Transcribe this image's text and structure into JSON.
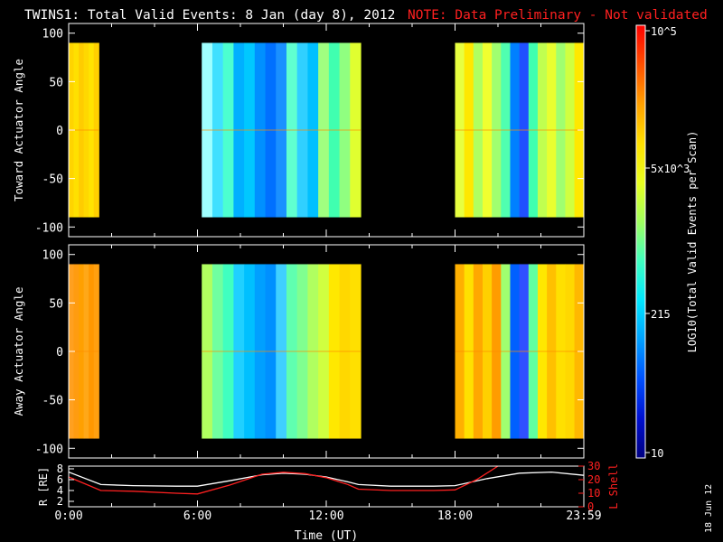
{
  "header": {
    "title": "TWINS1: Total Valid Events:  8 Jan (day   8), 2012",
    "note": "NOTE: Data Preliminary - Not validated"
  },
  "side_date": "18 Jun 12",
  "colorbar": {
    "label": "LOG10(Total Valid Events per Scan)",
    "ticks": [
      "10^5",
      "5x10^3",
      "215",
      "10"
    ],
    "colors": [
      "#ff0000",
      "#ff5000",
      "#ffa000",
      "#ffe000",
      "#e8ff20",
      "#a0ff60",
      "#40ffc0",
      "#00e8ff",
      "#00a0ff",
      "#0050ff",
      "#0010d0",
      "#000080"
    ]
  },
  "chart_data": [
    {
      "type": "heatmap",
      "name": "toward",
      "ylabel": "Toward Actuator Angle",
      "ylim": [
        -110,
        110
      ],
      "yticks": [
        100,
        50,
        0,
        -50,
        -100
      ],
      "data_range": [
        -90,
        90
      ],
      "blocks": [
        {
          "t0": 0.0,
          "t1": 1.4,
          "colors": [
            "#ffd400",
            "#ffe000",
            "#ffcc00",
            "#ffd800",
            "#ffe400",
            "#ffd000"
          ]
        },
        {
          "t0": 6.2,
          "t1": 13.6,
          "colors": [
            "#9fffff",
            "#40e0ff",
            "#4cffd0",
            "#00b0ff",
            "#00c8ff",
            "#0090ff",
            "#0070ff",
            "#1a90ff",
            "#60ffd0",
            "#30d0ff",
            "#00c0ff",
            "#a0ff80",
            "#40ffb0",
            "#90ff80",
            "#e0ff30"
          ]
        },
        {
          "t0": 18.0,
          "t1": 23.99,
          "colors": [
            "#e8ff40",
            "#ffe800",
            "#b0ff60",
            "#f0ff30",
            "#a0ff70",
            "#50ffb0",
            "#0080ff",
            "#2050ff",
            "#40ffb0",
            "#c0ff50",
            "#e8ff30",
            "#a0ff70",
            "#d0ff40",
            "#ffe800"
          ]
        }
      ]
    },
    {
      "type": "heatmap",
      "name": "away",
      "ylabel": "Away Actuator Angle",
      "ylim": [
        -110,
        110
      ],
      "yticks": [
        100,
        50,
        0,
        -50,
        -100
      ],
      "data_range": [
        -90,
        90
      ],
      "blocks": [
        {
          "t0": 0.0,
          "t1": 1.4,
          "colors": [
            "#ffa020",
            "#ff9c10",
            "#ffa000",
            "#ffa818",
            "#ff9800",
            "#ffa010"
          ]
        },
        {
          "t0": 6.2,
          "t1": 13.6,
          "colors": [
            "#b0ff60",
            "#70ffa0",
            "#40ffc0",
            "#20d0ff",
            "#00c0ff",
            "#00a0ff",
            "#0090ff",
            "#40d0ff",
            "#60ffb0",
            "#80ff90",
            "#b0ff60",
            "#d0ff40",
            "#ffe800",
            "#ffd800",
            "#ffe000"
          ]
        },
        {
          "t0": 18.0,
          "t1": 23.99,
          "colors": [
            "#ffb000",
            "#ffe000",
            "#ffa800",
            "#ffd000",
            "#ff9c00",
            "#a0ff70",
            "#0060ff",
            "#3050ff",
            "#60ffa0",
            "#ffe800",
            "#ffc000",
            "#ffe000",
            "#ffd800",
            "#ffb800"
          ]
        }
      ]
    },
    {
      "type": "line",
      "name": "orbit",
      "ylabel_left": "R [RE]",
      "ylabel_right": "L Shell",
      "xlabel": "Time (UT)",
      "xticks": [
        "0:00",
        "6:00",
        "12:00",
        "18:00",
        "23:59"
      ],
      "xtick_values": [
        0,
        6,
        12,
        18,
        24
      ],
      "yticks_left": [
        8,
        6,
        4,
        2
      ],
      "ylim_left": [
        1,
        8.5
      ],
      "yticks_right": [
        30,
        20,
        10,
        0
      ],
      "ylim_right": [
        0,
        30
      ],
      "series": [
        {
          "axis": "left",
          "color": "#ffffff",
          "x": [
            0,
            1.5,
            3,
            5,
            6,
            7.5,
            9,
            10,
            11,
            12,
            13,
            13.5,
            15,
            17,
            18,
            19.5,
            21,
            22.5,
            24
          ],
          "y": [
            7.4,
            5.1,
            4.9,
            4.8,
            4.8,
            5.8,
            6.9,
            7.2,
            7.0,
            6.5,
            5.6,
            5.1,
            4.8,
            4.8,
            4.9,
            6.2,
            7.2,
            7.4,
            6.8
          ]
        },
        {
          "axis": "right",
          "color": "#ff2020",
          "x": [
            0,
            1.5,
            3,
            5,
            6,
            7.5,
            9,
            10,
            11,
            12,
            13,
            13.5,
            15,
            17,
            18,
            19,
            20
          ],
          "y": [
            22,
            12,
            11.5,
            10,
            9.5,
            16,
            24,
            25.5,
            24.5,
            21.5,
            16.5,
            13,
            12,
            12,
            12.5,
            20,
            30
          ]
        }
      ]
    }
  ]
}
